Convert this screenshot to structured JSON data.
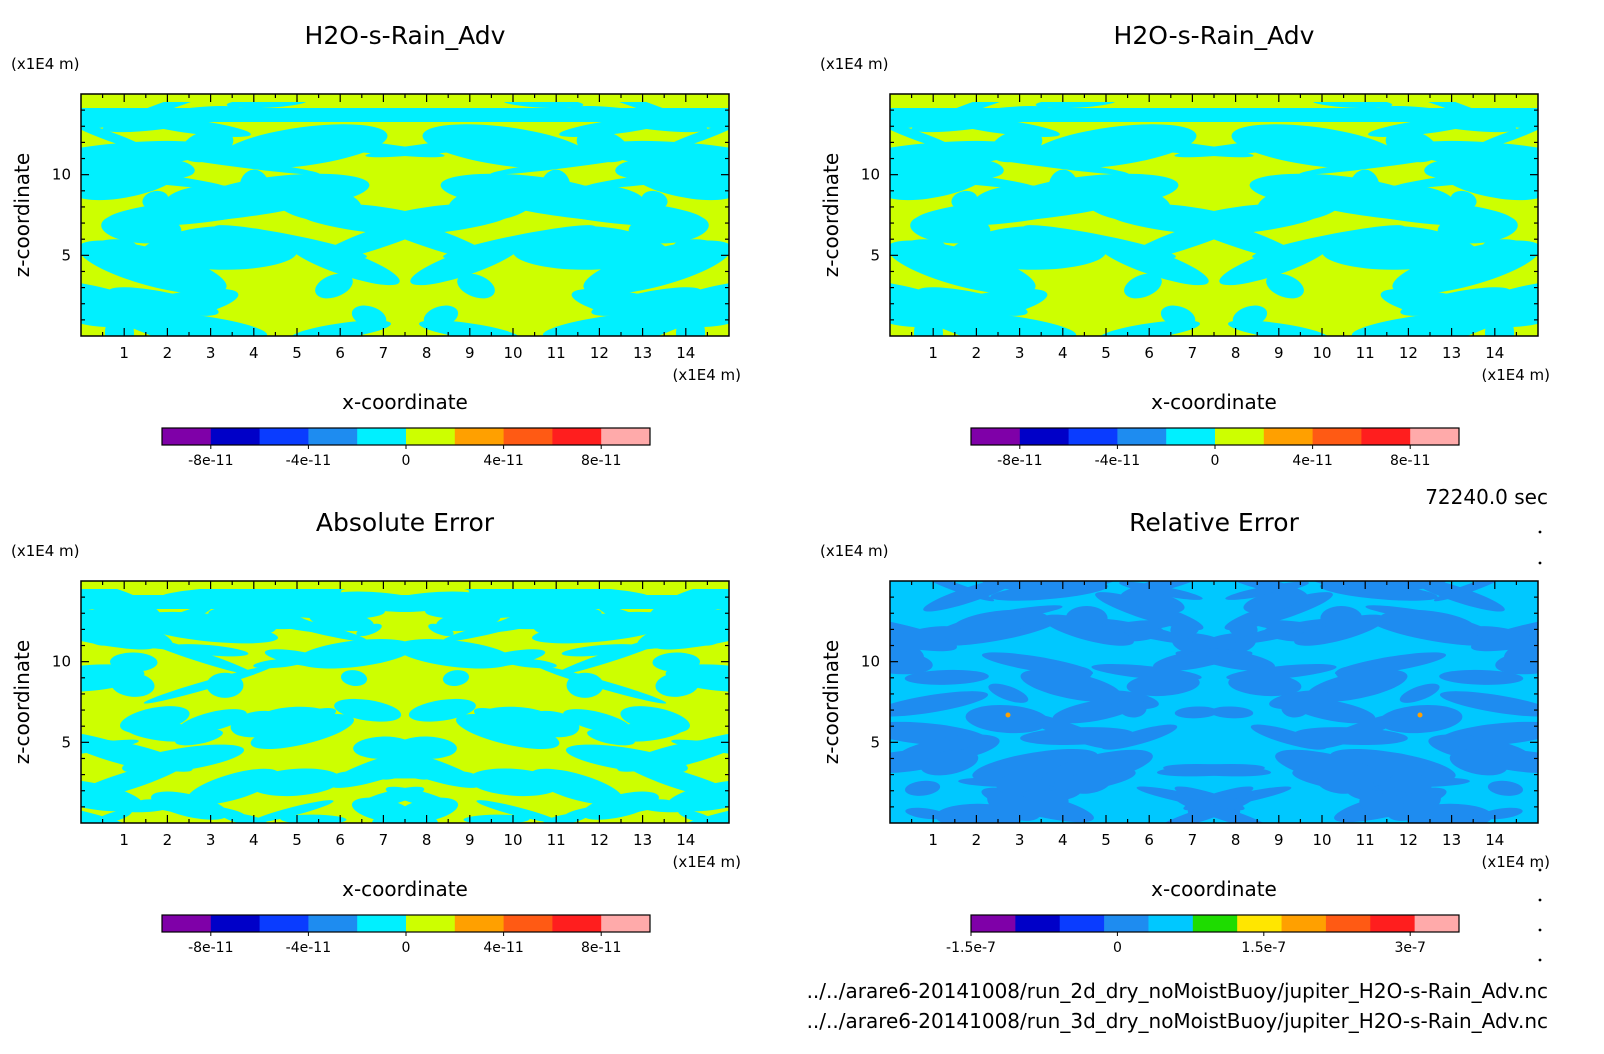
{
  "chart_data": [
    {
      "type": "heatmap",
      "title": "H2O-s-Rain_Adv",
      "xlabel": "x-coordinate",
      "ylabel": "z-coordinate",
      "x_unit": "(x1E4 m)",
      "y_unit": "(x1E4 m)",
      "x_ticks": [
        "1",
        "2",
        "3",
        "4",
        "5",
        "6",
        "7",
        "8",
        "9",
        "10",
        "11",
        "12",
        "13",
        "14"
      ],
      "y_ticks": [
        "5",
        "10"
      ],
      "xlim": [
        0,
        15
      ],
      "ylim": [
        0,
        15
      ],
      "grid": false,
      "dominant_levels": [
        "0 to 1e-11 (yellow-green)",
        "-1e-11 to 0 (cyan)"
      ],
      "colorbar": {
        "colors": [
          "#7f00a8",
          "#0000c8",
          "#0a3cff",
          "#1e8cf0",
          "#00f0ff",
          "#cdff00",
          "#ffa000",
          "#ff5a14",
          "#ff1e1e",
          "#ffaaaa"
        ],
        "bounds": [
          -1e-10,
          1e-10
        ],
        "labels": [
          "-8e-11",
          "-4e-11",
          "0",
          "4e-11",
          "8e-11"
        ]
      }
    },
    {
      "type": "heatmap",
      "title": "H2O-s-Rain_Adv",
      "xlabel": "x-coordinate",
      "ylabel": "z-coordinate",
      "x_unit": "(x1E4 m)",
      "y_unit": "(x1E4 m)",
      "x_ticks": [
        "1",
        "2",
        "3",
        "4",
        "5",
        "6",
        "7",
        "8",
        "9",
        "10",
        "11",
        "12",
        "13",
        "14"
      ],
      "y_ticks": [
        "5",
        "10"
      ],
      "xlim": [
        0,
        15
      ],
      "ylim": [
        0,
        15
      ],
      "grid": false,
      "dominant_levels": [
        "0 to 1e-11 (yellow-green)",
        "-1e-11 to 0 (cyan)"
      ],
      "colorbar": {
        "colors": [
          "#7f00a8",
          "#0000c8",
          "#0a3cff",
          "#1e8cf0",
          "#00f0ff",
          "#cdff00",
          "#ffa000",
          "#ff5a14",
          "#ff1e1e",
          "#ffaaaa"
        ],
        "bounds": [
          -1e-10,
          1e-10
        ],
        "labels": [
          "-8e-11",
          "-4e-11",
          "0",
          "4e-11",
          "8e-11"
        ]
      }
    },
    {
      "type": "heatmap",
      "title": "Absolute Error",
      "xlabel": "x-coordinate",
      "ylabel": "z-coordinate",
      "x_unit": "(x1E4 m)",
      "y_unit": "(x1E4 m)",
      "x_ticks": [
        "1",
        "2",
        "3",
        "4",
        "5",
        "6",
        "7",
        "8",
        "9",
        "10",
        "11",
        "12",
        "13",
        "14"
      ],
      "y_ticks": [
        "5",
        "10"
      ],
      "xlim": [
        0,
        15
      ],
      "ylim": [
        0,
        15
      ],
      "grid": false,
      "dominant_levels": [
        "0 to 1e-11 (yellow-green)",
        "-1e-11 to 0 (cyan)"
      ],
      "colorbar": {
        "colors": [
          "#7f00a8",
          "#0000c8",
          "#0a3cff",
          "#1e8cf0",
          "#00f0ff",
          "#cdff00",
          "#ffa000",
          "#ff5a14",
          "#ff1e1e",
          "#ffaaaa"
        ],
        "bounds": [
          -1e-10,
          1e-10
        ],
        "labels": [
          "-8e-11",
          "-4e-11",
          "0",
          "4e-11",
          "8e-11"
        ]
      }
    },
    {
      "type": "heatmap",
      "title": "Relative Error",
      "xlabel": "x-coordinate",
      "ylabel": "z-coordinate",
      "x_unit": "(x1E4 m)",
      "y_unit": "(x1E4 m)",
      "x_ticks": [
        "1",
        "2",
        "3",
        "4",
        "5",
        "6",
        "7",
        "8",
        "9",
        "10",
        "11",
        "12",
        "13",
        "14"
      ],
      "y_ticks": [
        "5",
        "10"
      ],
      "xlim": [
        0,
        15
      ],
      "ylim": [
        0,
        15
      ],
      "grid": false,
      "dominant_levels": [
        "0 to 5e-8 (light blue)",
        "-5e-8 to 0 (blue)"
      ],
      "colorbar": {
        "colors": [
          "#7f00a8",
          "#0000c8",
          "#0a3cff",
          "#1e8cf0",
          "#00c8ff",
          "#1edc00",
          "#ffe600",
          "#ffa000",
          "#ff5a14",
          "#ff1e1e",
          "#ffaaaa"
        ],
        "bounds": [
          -1.5e-07,
          3.5e-07
        ],
        "labels": [
          "-1.5e-7",
          "0",
          "1.5e-7",
          "3e-7"
        ]
      }
    }
  ],
  "time_label": "72240.0 sec",
  "footer_lines": [
    "../../arare6-20141008/run_2d_dry_noMoistBuoy/jupiter_H2O-s-Rain_Adv.nc",
    "../../arare6-20141008/run_3d_dry_noMoistBuoy/jupiter_H2O-s-Rain_Adv.nc"
  ]
}
